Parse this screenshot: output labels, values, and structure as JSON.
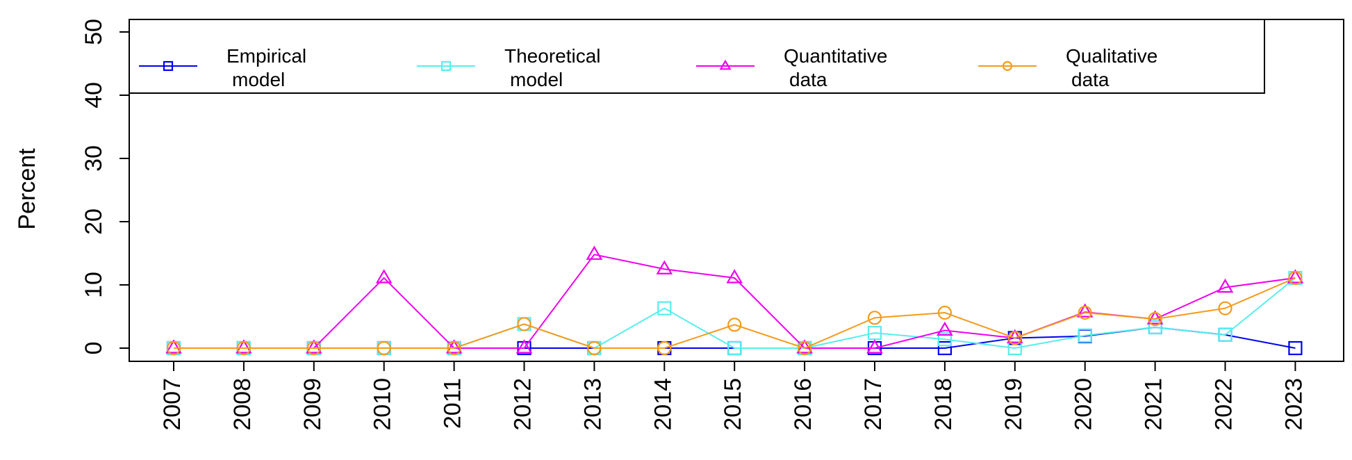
{
  "chart_data": {
    "type": "line",
    "title": "",
    "xlabel": "",
    "ylabel": "Percent",
    "x": [
      "2007",
      "2008",
      "2009",
      "2010",
      "2011",
      "2012",
      "2013",
      "2014",
      "2015",
      "2016",
      "2017",
      "2018",
      "2019",
      "2020",
      "2021",
      "2022",
      "2023"
    ],
    "ylim": [
      0,
      50
    ],
    "yticks": [
      0,
      10,
      20,
      30,
      40,
      50
    ],
    "grid": false,
    "legend_position": "top",
    "series": [
      {
        "legend_line1": "Empirical",
        "legend_line2": "model",
        "color": "#0000ee",
        "marker": "square",
        "values": [
          0,
          0,
          0,
          0,
          0,
          0,
          0,
          0,
          0,
          0,
          0,
          0,
          1.6,
          1.9,
          3.3,
          2.1,
          0
        ]
      },
      {
        "legend_line1": "Theoretical",
        "legend_line2": "model",
        "color": "#55eeee",
        "marker": "square",
        "values": [
          0,
          0,
          0,
          0,
          0,
          3.8,
          0,
          6.3,
          0,
          0,
          2.4,
          1.4,
          0,
          2,
          3.3,
          2.1,
          11.1
        ]
      },
      {
        "legend_line1": "Quantitative",
        "legend_line2": "data",
        "color": "#ee00ee",
        "marker": "triangle",
        "values": [
          0,
          0,
          0,
          11.1,
          0,
          0,
          14.8,
          12.5,
          11.1,
          0,
          0,
          2.8,
          1.6,
          5.7,
          4.6,
          9.6,
          11.1
        ]
      },
      {
        "legend_line1": "Qualitative",
        "legend_line2": "data",
        "color": "#f59a1b",
        "marker": "circle",
        "values": [
          0,
          0,
          0,
          0,
          0,
          3.8,
          0,
          0,
          3.7,
          0,
          4.8,
          5.6,
          1.6,
          5.6,
          4.6,
          6.3,
          11.1
        ]
      }
    ]
  }
}
